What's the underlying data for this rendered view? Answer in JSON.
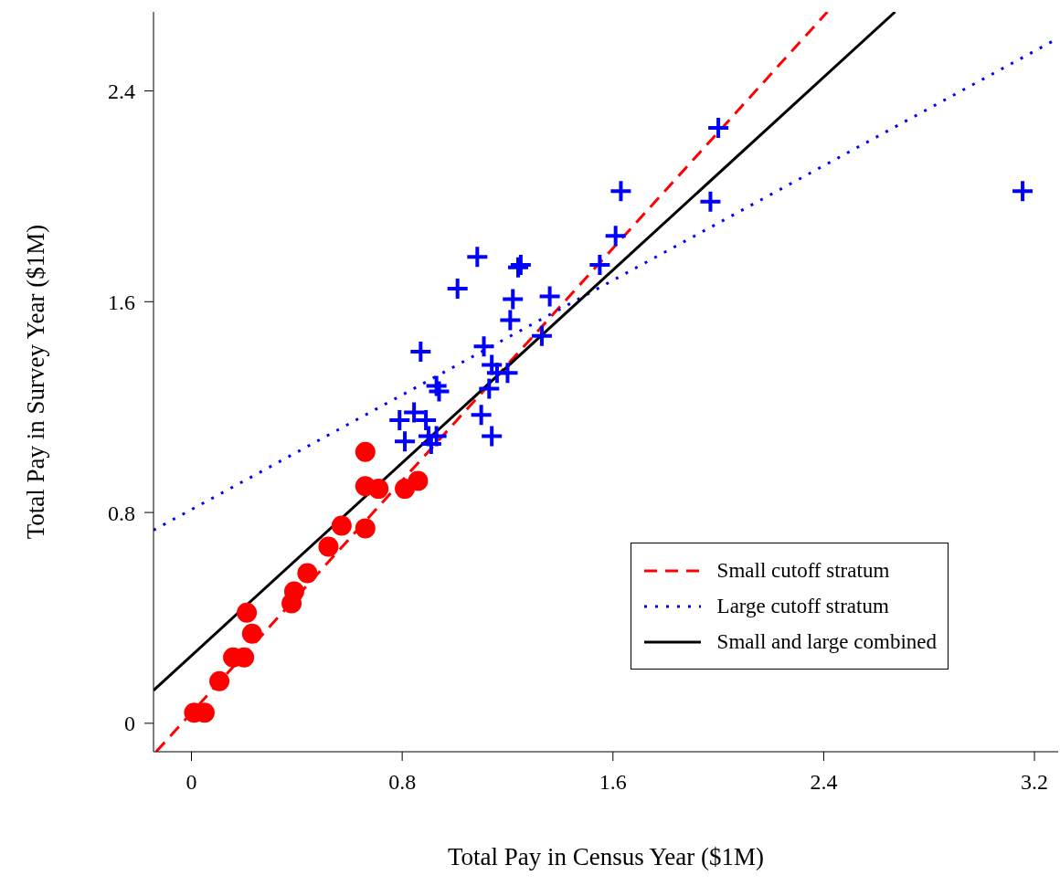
{
  "chart_data": {
    "type": "scatter",
    "xlabel": "Total Pay in Census Year ($1M)",
    "ylabel": "Total Pay in Survey Year ($1M)",
    "xlim": [
      -0.144,
      3.29
    ],
    "ylim": [
      -0.108,
      2.7
    ],
    "xticks": [
      0,
      0.8,
      1.6,
      2.4,
      3.2
    ],
    "yticks": [
      0,
      0.8,
      1.6,
      2.4
    ],
    "grid": false,
    "legend": "bottom right",
    "series": [
      {
        "type": "scatter",
        "marker": "circle",
        "color": "#ff0000",
        "x": [
          0.01,
          0.05,
          0.106,
          0.158,
          0.2,
          0.23,
          0.21,
          0.38,
          0.39,
          0.44,
          0.52,
          0.57,
          0.66,
          0.66,
          0.66,
          0.71,
          0.81,
          0.86
        ],
        "values": [
          0.04,
          0.04,
          0.16,
          0.25,
          0.25,
          0.34,
          0.42,
          0.455,
          0.5,
          0.57,
          0.67,
          0.75,
          0.74,
          1.03,
          0.9,
          0.89,
          0.89,
          0.92
        ]
      },
      {
        "type": "scatter",
        "marker": "cross",
        "color": "#0000ff",
        "x": [
          1.085,
          1.01,
          1.25,
          1.24,
          1.22,
          1.36,
          1.21,
          1.33,
          0.87,
          1.11,
          0.94,
          0.93,
          1.14,
          1.16,
          1.2,
          1.13,
          1.1,
          1.14,
          0.79,
          0.845,
          0.89,
          0.81,
          0.9,
          0.93,
          0.91,
          2.0,
          1.63,
          1.97,
          1.61,
          1.55,
          3.155
        ],
        "values": [
          1.77,
          1.65,
          1.74,
          1.73,
          1.61,
          1.62,
          1.53,
          1.47,
          1.41,
          1.43,
          1.26,
          1.28,
          1.36,
          1.33,
          1.33,
          1.27,
          1.17,
          1.09,
          1.15,
          1.18,
          1.15,
          1.07,
          1.09,
          1.09,
          1.06,
          2.26,
          2.02,
          1.98,
          1.85,
          1.74,
          2.02
        ]
      },
      {
        "type": "line",
        "name": "Small cutoff stratum",
        "line_style": "dashed",
        "color": "#ff0000",
        "x": [
          -0.134,
          2.414
        ],
        "values": [
          -0.108,
          2.7
        ]
      },
      {
        "type": "line",
        "name": "Large cutoff stratum",
        "line_style": "dotted",
        "color": "#0000ff",
        "x": [
          -0.144,
          3.29
        ],
        "values": [
          0.733,
          2.6
        ]
      },
      {
        "type": "line",
        "name": "Small and large combined",
        "line_style": "solid",
        "color": "#000000",
        "x": [
          -0.144,
          2.671
        ],
        "values": [
          0.125,
          2.7
        ]
      }
    ]
  }
}
